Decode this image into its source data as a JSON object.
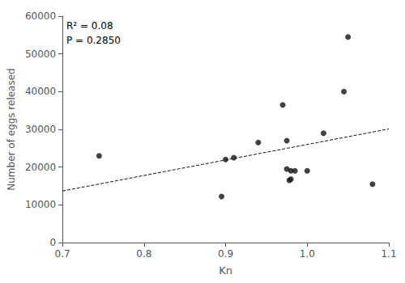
{
  "chart_data": {
    "type": "scatter",
    "xlabel": "Kn",
    "ylabel": "Number of eggs released",
    "annotations": [
      "R² = 0.08",
      "P = 0.2850"
    ],
    "x": [
      0.745,
      0.895,
      0.9,
      0.91,
      0.94,
      0.97,
      0.975,
      0.975,
      0.978,
      0.98,
      0.98,
      0.985,
      1.0,
      1.02,
      1.045,
      1.05,
      1.08
    ],
    "series": [
      {
        "type": "scatter",
        "color": "#111111",
        "marker": "circle",
        "values": [
          23000,
          12200,
          22000,
          22500,
          26500,
          36500,
          27000,
          19500,
          16500,
          16800,
          19000,
          19000,
          19000,
          29000,
          40000,
          54500,
          15500
        ]
      },
      {
        "type": "line",
        "color": "#111111",
        "line_style": "dashed",
        "x": [
          0.7,
          1.1
        ],
        "values": [
          13666,
          30113
        ]
      }
    ],
    "xlim": [
      0.7,
      1.1
    ],
    "xticks": [
      0.7,
      0.8,
      0.9,
      {
        "value": 1,
        "label": "1.0"
      },
      1.1
    ],
    "ylim": [
      0,
      60000
    ],
    "yticks": [
      0,
      10000,
      20000,
      30000,
      40000,
      50000,
      60000
    ],
    "grid": false
  }
}
